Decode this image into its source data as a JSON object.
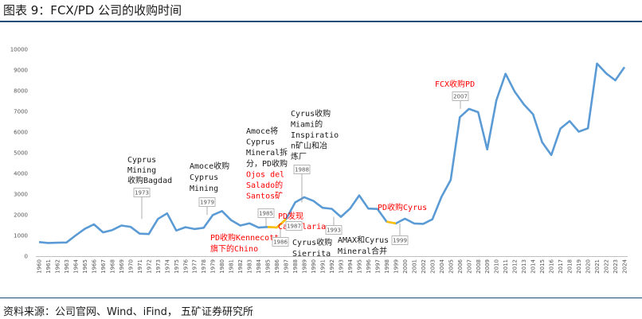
{
  "header": {
    "title": "图表 9：FCX/PD 公司的收购时间"
  },
  "footer": {
    "source": "资料来源：公司官网、Wind、iFind，  五矿证券研究所"
  },
  "colors": {
    "line": "#5b9bd5",
    "highlight": "#ffc000",
    "red_text": "#ff0000",
    "black_text": "#1a1a1a",
    "rule": "#1f4e79"
  },
  "chart_data": {
    "type": "line",
    "title": "",
    "xlabel": "",
    "ylabel": "",
    "ylim": [
      0,
      10000
    ],
    "yticks": [
      0,
      1000,
      2000,
      3000,
      4000,
      5000,
      6000,
      7000,
      8000,
      9000,
      10000
    ],
    "grid": false,
    "legend": "none",
    "x": [
      "1960",
      "1961",
      "1962",
      "1963",
      "1964",
      "1965",
      "1966",
      "1967",
      "1968",
      "1969",
      "1970",
      "1971",
      "1972",
      "1973",
      "1974",
      "1975",
      "1976",
      "1977",
      "1978",
      "1979",
      "1980",
      "1981",
      "1982",
      "1983",
      "1984",
      "1985",
      "1986",
      "1987",
      "1988",
      "1989",
      "1990",
      "1991",
      "1992",
      "1993",
      "1994",
      "1995",
      "1996",
      "1997",
      "1998",
      "1999",
      "2000",
      "2001",
      "2002",
      "2003",
      "2004",
      "2005",
      "2006",
      "2007",
      "2008",
      "2009",
      "2010",
      "2011",
      "2012",
      "2013",
      "2014",
      "2015",
      "2016",
      "2017",
      "2018",
      "2019",
      "2020",
      "2021",
      "2022",
      "2023",
      "2024"
    ],
    "values": [
      680,
      640,
      650,
      660,
      1000,
      1320,
      1540,
      1150,
      1260,
      1480,
      1420,
      1090,
      1070,
      1800,
      2070,
      1240,
      1400,
      1310,
      1370,
      1990,
      2180,
      1740,
      1480,
      1590,
      1380,
      1410,
      1390,
      1790,
      2600,
      2850,
      2670,
      2340,
      2290,
      1900,
      2300,
      2940,
      2300,
      2280,
      1670,
      1580,
      1810,
      1580,
      1560,
      1780,
      2870,
      3680,
      6720,
      7120,
      6960,
      5160,
      7540,
      8820,
      7950,
      7340,
      6860,
      5510,
      4890,
      6170,
      6530,
      6020,
      6180,
      9310,
      8840,
      8500,
      9140
    ],
    "highlight_segments": [
      [
        25,
        27
      ],
      [
        38,
        39
      ]
    ],
    "annotations": [
      {
        "year": "1973",
        "text": [
          "Cyprus",
          "Mining",
          "收购Bagdad"
        ],
        "color": "black"
      },
      {
        "year": "1979",
        "text": [
          "Amoce收购",
          "Cyprus",
          "Mining"
        ],
        "color": "black"
      },
      {
        "year": "1985",
        "text": [
          "Amoce将",
          "Cyprus",
          "Mineral拆",
          "分，PD收购",
          "Ojos del",
          "Salado的",
          "Santos矿"
        ],
        "color": "mixed"
      },
      {
        "year": "1986",
        "text": [
          "PD收购Kennecott",
          "旗下的Chino"
        ],
        "color": "red"
      },
      {
        "year": "1987",
        "text": [
          "PD发现",
          "Candelaria"
        ],
        "color": "red"
      },
      {
        "year": "1988",
        "text": [
          "Cyrus收购",
          "Miami的",
          "Inspiratio",
          "n矿山和冶",
          "炼厂"
        ],
        "color": "black"
      },
      {
        "year": "1993",
        "text": [
          "Cyrus收购",
          "Sierrita"
        ],
        "color": "black"
      },
      {
        "year": "1993b",
        "text": [
          "AMAX和Cyrus",
          "Mineral合并"
        ],
        "color": "black"
      },
      {
        "year": "1999",
        "text": [
          "PD收购Cyrus"
        ],
        "color": "red"
      },
      {
        "year": "2007",
        "text": [
          "FCX收购PD"
        ],
        "color": "red"
      }
    ]
  }
}
